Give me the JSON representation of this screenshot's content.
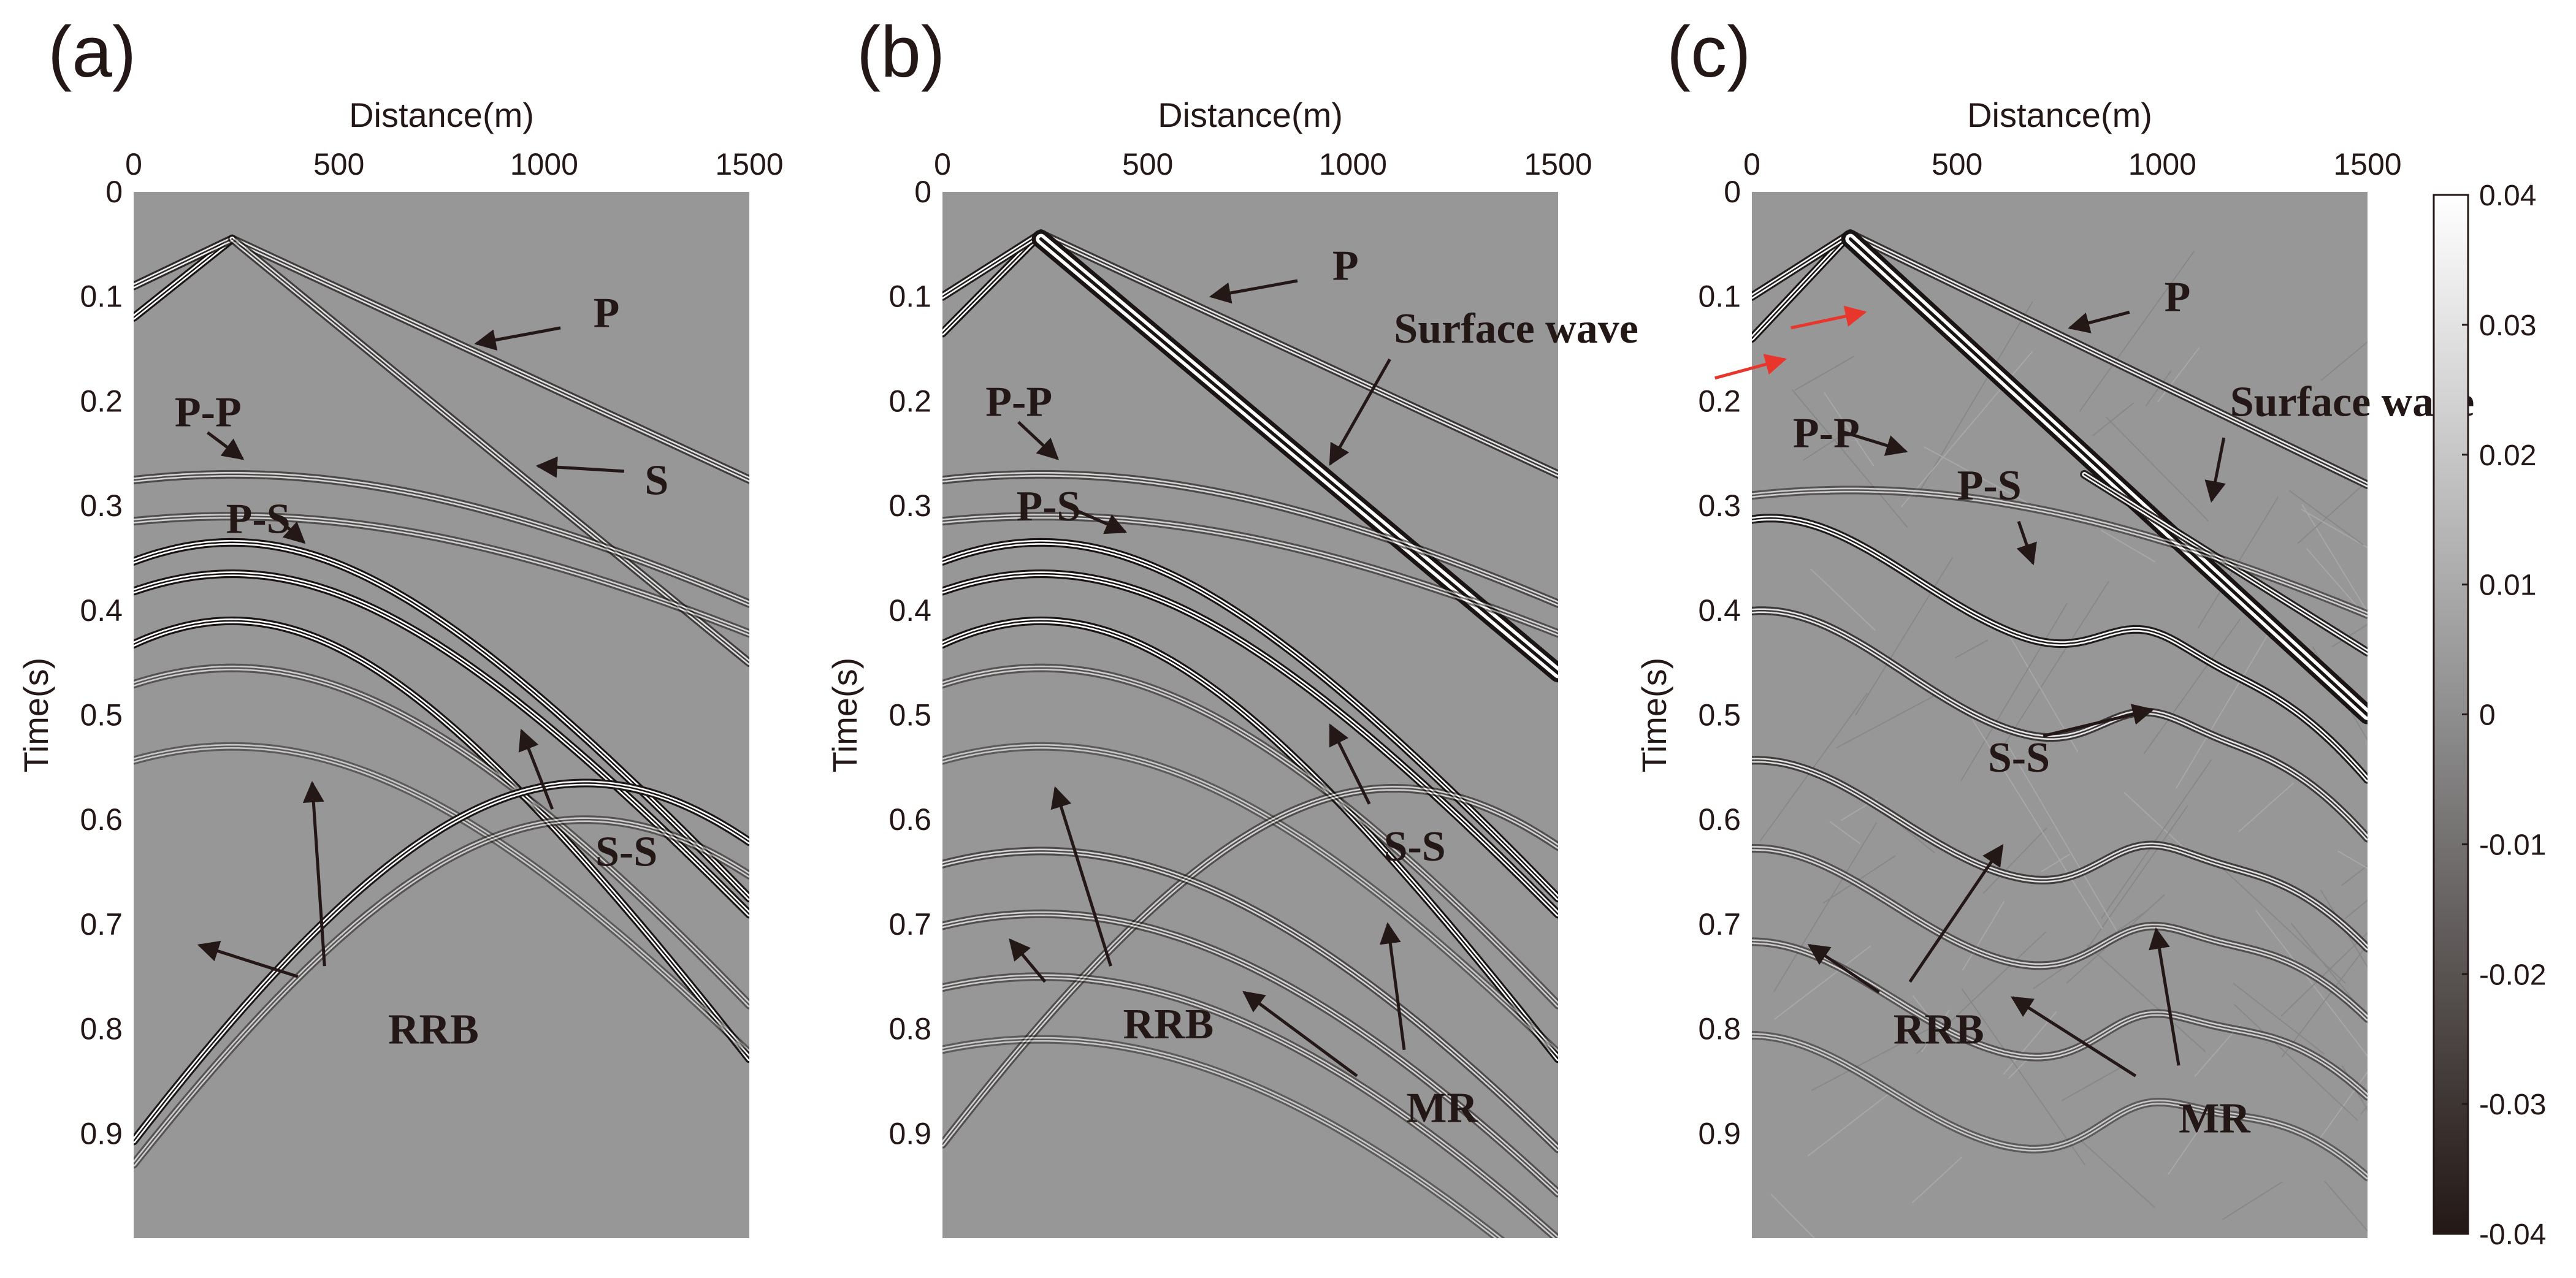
{
  "figure": {
    "type": "seismic-shot-gather-panels",
    "background": "#ffffff",
    "panel_fill": "#979797",
    "ink": "#231815",
    "arrow_color": "#231815",
    "red_arrow_color": "#e8362c"
  },
  "chart_data": [
    {
      "type": "heatmap",
      "panel_label": "(a)",
      "xlabel": "Distance(m)",
      "ylabel": "Time(s)",
      "xlim": [
        0,
        1500
      ],
      "ylim": [
        0,
        1.0
      ],
      "xticks": [
        0,
        500,
        1000,
        1500
      ],
      "xtick_labels": [
        "0",
        "500",
        "1000",
        "1500"
      ],
      "yticks": [
        0,
        0.1,
        0.2,
        0.3,
        0.4,
        0.5,
        0.6,
        0.7,
        0.8,
        0.9
      ],
      "ytick_labels": [
        "0",
        "0.1",
        "0.2",
        "0.3",
        "0.4",
        "0.5",
        "0.6",
        "0.7",
        "0.8",
        "0.9"
      ],
      "source_x": 240,
      "source_t": 0.045,
      "events": [
        {
          "name": "P",
          "kind": "line",
          "points": [
            [
              240,
              0.045
            ],
            [
              1500,
              0.275
            ]
          ],
          "strength": 0.5
        },
        {
          "name": "P-left",
          "kind": "line",
          "points": [
            [
              240,
              0.045
            ],
            [
              0,
              0.12
            ]
          ],
          "strength": 1.0
        },
        {
          "name": "P-left-2",
          "kind": "line",
          "points": [
            [
              240,
              0.045
            ],
            [
              0,
              0.09
            ]
          ],
          "strength": 0.7
        },
        {
          "name": "S",
          "kind": "line",
          "points": [
            [
              240,
              0.045
            ],
            [
              1500,
              0.45
            ]
          ],
          "strength": 0.5
        },
        {
          "name": "P-P",
          "kind": "hyperbola",
          "t0": 0.27,
          "v": 4400,
          "strength": 0.4
        },
        {
          "name": "P-P-2",
          "kind": "hyperbola",
          "t0": 0.31,
          "v": 4400,
          "strength": 0.35
        },
        {
          "name": "P-S",
          "kind": "hyperbola",
          "t0": 0.335,
          "v": 2150,
          "strength": 1.0
        },
        {
          "name": "P-S-2",
          "kind": "hyperbola",
          "t0": 0.365,
          "v": 2150,
          "strength": 0.95
        },
        {
          "name": "S-S",
          "kind": "hyperbola",
          "t0": 0.41,
          "v": 1750,
          "strength": 1.0
        },
        {
          "name": "weak-1",
          "kind": "hyperbola",
          "t0": 0.455,
          "v": 2000,
          "strength": 0.3
        },
        {
          "name": "weak-2",
          "kind": "hyperbola",
          "t0": 0.53,
          "v": 2000,
          "strength": 0.25
        },
        {
          "name": "RRB",
          "kind": "hyperbola",
          "t0": 0.565,
          "v": 1550,
          "x0": 1100,
          "strength": 0.85
        },
        {
          "name": "RRB-2",
          "kind": "hyperbola",
          "t0": 0.6,
          "v": 1550,
          "x0": 1100,
          "strength": 0.3
        }
      ],
      "annotations": [
        {
          "text": "P",
          "x": 1120,
          "t": 0.115,
          "ax": 1040,
          "at": 0.13,
          "hx": 835,
          "ht": 0.145
        },
        {
          "text": "S",
          "x": 1245,
          "t": 0.275,
          "ax": 1195,
          "at": 0.267,
          "hx": 985,
          "ht": 0.262
        },
        {
          "text": "P-P",
          "x": 100,
          "t": 0.21,
          "ax": 180,
          "at": 0.23,
          "hx": 265,
          "ht": 0.255
        },
        {
          "text": "P-S",
          "x": 225,
          "t": 0.312,
          "ax": 345,
          "at": 0.31,
          "hx": 415,
          "ht": 0.335
        },
        {
          "text": "S-S",
          "x": 1125,
          "t": 0.63,
          "ax": 1020,
          "at": 0.59,
          "hx": 945,
          "ht": 0.515
        },
        {
          "text": "RRB",
          "x": 620,
          "t": 0.8,
          "ax": 400,
          "at": 0.75,
          "hx": 160,
          "ht": 0.72
        },
        {
          "text": "",
          "x": 0,
          "t": 0,
          "ax": 465,
          "at": 0.74,
          "hx": 435,
          "ht": 0.565
        }
      ]
    },
    {
      "type": "heatmap",
      "panel_label": "(b)",
      "xlabel": "Distance(m)",
      "ylabel": "Time(s)",
      "xlim": [
        0,
        1500
      ],
      "ylim": [
        0,
        1.0
      ],
      "xticks": [
        0,
        500,
        1000,
        1500
      ],
      "xtick_labels": [
        "0",
        "500",
        "1000",
        "1500"
      ],
      "yticks": [
        0,
        0.1,
        0.2,
        0.3,
        0.4,
        0.5,
        0.6,
        0.7,
        0.8,
        0.9
      ],
      "ytick_labels": [
        "0",
        "0.1",
        "0.2",
        "0.3",
        "0.4",
        "0.5",
        "0.6",
        "0.7",
        "0.8",
        "0.9"
      ],
      "source_x": 240,
      "source_t": 0.04,
      "events": [
        {
          "name": "P",
          "kind": "line",
          "points": [
            [
              240,
              0.04
            ],
            [
              1500,
              0.27
            ]
          ],
          "strength": 0.55
        },
        {
          "name": "P-left",
          "kind": "line",
          "points": [
            [
              240,
              0.04
            ],
            [
              0,
              0.135
            ]
          ],
          "strength": 1.0
        },
        {
          "name": "P-left-2",
          "kind": "line",
          "points": [
            [
              240,
              0.04
            ],
            [
              0,
              0.1
            ]
          ],
          "strength": 0.8
        },
        {
          "name": "Surface wave",
          "kind": "line",
          "points": [
            [
              240,
              0.045
            ],
            [
              1500,
              0.46
            ]
          ],
          "strength": 1.0,
          "wide": true
        },
        {
          "name": "P-P",
          "kind": "hyperbola",
          "t0": 0.27,
          "v": 4400,
          "strength": 0.4
        },
        {
          "name": "P-P-2",
          "kind": "hyperbola",
          "t0": 0.31,
          "v": 4400,
          "strength": 0.35
        },
        {
          "name": "P-S",
          "kind": "hyperbola",
          "t0": 0.335,
          "v": 2150,
          "strength": 1.0
        },
        {
          "name": "P-S-2",
          "kind": "hyperbola",
          "t0": 0.365,
          "v": 2150,
          "strength": 0.9
        },
        {
          "name": "S-S",
          "kind": "hyperbola",
          "t0": 0.41,
          "v": 1750,
          "strength": 1.0
        },
        {
          "name": "weak-1",
          "kind": "hyperbola",
          "t0": 0.455,
          "v": 2000,
          "strength": 0.3
        },
        {
          "name": "weak-2",
          "kind": "hyperbola",
          "t0": 0.53,
          "v": 2000,
          "strength": 0.25
        },
        {
          "name": "RRB",
          "kind": "hyperbola",
          "t0": 0.57,
          "v": 1550,
          "x0": 1100,
          "strength": 0.35
        },
        {
          "name": "MR",
          "kind": "hyperbola",
          "t0": 0.63,
          "v": 1900,
          "strength": 0.4
        },
        {
          "name": "MR-2",
          "kind": "hyperbola",
          "t0": 0.69,
          "v": 1900,
          "strength": 0.35
        },
        {
          "name": "MR-3",
          "kind": "hyperbola",
          "t0": 0.75,
          "v": 1900,
          "strength": 0.3
        },
        {
          "name": "MR-4",
          "kind": "hyperbola",
          "t0": 0.81,
          "v": 1900,
          "strength": 0.25
        }
      ],
      "annotations": [
        {
          "text": "P",
          "x": 950,
          "t": 0.07,
          "ax": 865,
          "at": 0.085,
          "hx": 655,
          "ht": 0.1
        },
        {
          "text": "Surface wave",
          "x": 1100,
          "t": 0.13,
          "ax": 1090,
          "at": 0.16,
          "hx": 945,
          "ht": 0.26
        },
        {
          "text": "P-P",
          "x": 105,
          "t": 0.2,
          "ax": 185,
          "at": 0.22,
          "hx": 280,
          "ht": 0.255
        },
        {
          "text": "P-S",
          "x": 180,
          "t": 0.3,
          "ax": 300,
          "at": 0.3,
          "hx": 445,
          "ht": 0.325
        },
        {
          "text": "S-S",
          "x": 1075,
          "t": 0.625,
          "ax": 1040,
          "at": 0.585,
          "hx": 945,
          "ht": 0.51
        },
        {
          "text": "RRB",
          "x": 440,
          "t": 0.795,
          "ax": 410,
          "at": 0.74,
          "hx": 275,
          "ht": 0.57
        },
        {
          "text": "",
          "x": 0,
          "t": 0,
          "ax": 250,
          "at": 0.755,
          "hx": 165,
          "ht": 0.715
        },
        {
          "text": "MR",
          "x": 1130,
          "t": 0.875,
          "ax": 1125,
          "at": 0.82,
          "hx": 1085,
          "ht": 0.7
        },
        {
          "text": "",
          "x": 0,
          "t": 0,
          "ax": 1010,
          "at": 0.845,
          "hx": 735,
          "ht": 0.765
        }
      ]
    },
    {
      "type": "heatmap",
      "panel_label": "(c)",
      "xlabel": "Distance(m)",
      "ylabel": "Time(s)",
      "xlim": [
        0,
        1500
      ],
      "ylim": [
        0,
        1.0
      ],
      "xticks": [
        0,
        500,
        1000,
        1500
      ],
      "xtick_labels": [
        "0",
        "500",
        "1000",
        "1500"
      ],
      "yticks": [
        0,
        0.1,
        0.2,
        0.3,
        0.4,
        0.5,
        0.6,
        0.7,
        0.8,
        0.9
      ],
      "ytick_labels": [
        "0",
        "0.1",
        "0.2",
        "0.3",
        "0.4",
        "0.5",
        "0.6",
        "0.7",
        "0.8",
        "0.9"
      ],
      "source_x": 240,
      "source_t": 0.04,
      "noisy": true,
      "events": [
        {
          "name": "P",
          "kind": "line",
          "points": [
            [
              240,
              0.04
            ],
            [
              1500,
              0.28
            ]
          ],
          "strength": 0.6
        },
        {
          "name": "P-left",
          "kind": "line",
          "points": [
            [
              240,
              0.04
            ],
            [
              0,
              0.14
            ]
          ],
          "strength": 1.0
        },
        {
          "name": "P-left-2",
          "kind": "line",
          "points": [
            [
              240,
              0.04
            ],
            [
              0,
              0.1
            ]
          ],
          "strength": 0.8
        },
        {
          "name": "Surface wave",
          "kind": "line",
          "points": [
            [
              240,
              0.045
            ],
            [
              1500,
              0.5
            ]
          ],
          "strength": 1.0,
          "wide": true
        },
        {
          "name": "Surface wave-2",
          "kind": "line",
          "points": [
            [
              810,
              0.27
            ],
            [
              1500,
              0.44
            ]
          ],
          "strength": 0.75
        },
        {
          "name": "P-P",
          "kind": "hyperbola",
          "t0": 0.285,
          "v": 4400,
          "strength": 0.3
        },
        {
          "name": "P-S",
          "kind": "wavy",
          "t0": 0.345,
          "amp": 0.045,
          "strength": 0.8
        },
        {
          "name": "S-S",
          "kind": "wavy",
          "t0": 0.44,
          "amp": 0.05,
          "strength": 0.55
        },
        {
          "name": "RRB",
          "kind": "wavy",
          "t0": 0.585,
          "amp": 0.05,
          "strength": 0.5
        },
        {
          "name": "MR",
          "kind": "wavy",
          "t0": 0.67,
          "amp": 0.05,
          "strength": 0.35
        },
        {
          "name": "MR-2",
          "kind": "wavy",
          "t0": 0.76,
          "amp": 0.05,
          "strength": 0.3
        },
        {
          "name": "MR-3",
          "kind": "wavy",
          "t0": 0.85,
          "amp": 0.05,
          "strength": 0.25
        }
      ],
      "annotations": [
        {
          "text": "P",
          "x": 1005,
          "t": 0.1,
          "ax": 920,
          "at": 0.115,
          "hx": 775,
          "ht": 0.13
        },
        {
          "text": "Surface wave",
          "x": 1165,
          "t": 0.2,
          "ax": 1150,
          "at": 0.235,
          "hx": 1120,
          "ht": 0.295
        },
        {
          "text": "P-P",
          "x": 100,
          "t": 0.23,
          "ax": 210,
          "at": 0.228,
          "hx": 375,
          "ht": 0.248
        },
        {
          "text": "P-S",
          "x": 500,
          "t": 0.28,
          "ax": 650,
          "at": 0.315,
          "hx": 685,
          "ht": 0.355
        },
        {
          "text": "S-S",
          "x": 575,
          "t": 0.54,
          "ax": 710,
          "at": 0.52,
          "hx": 975,
          "ht": 0.495
        },
        {
          "text": "RRB",
          "x": 345,
          "t": 0.8,
          "ax": 310,
          "at": 0.765,
          "hx": 140,
          "ht": 0.72
        },
        {
          "text": "",
          "x": 0,
          "t": 0,
          "ax": 385,
          "at": 0.755,
          "hx": 610,
          "ht": 0.625
        },
        {
          "text": "MR",
          "x": 1040,
          "t": 0.885,
          "ax": 1040,
          "at": 0.835,
          "hx": 985,
          "ht": 0.705
        },
        {
          "text": "",
          "x": 0,
          "t": 0,
          "ax": 935,
          "at": 0.845,
          "hx": 635,
          "ht": 0.77
        }
      ],
      "red_arrows": [
        {
          "ax": -90,
          "at": 0.178,
          "hx": 80,
          "ht": 0.16
        },
        {
          "ax": 95,
          "at": 0.13,
          "hx": 275,
          "ht": 0.115
        }
      ]
    }
  ],
  "colorbar": {
    "vmin": -0.04,
    "vmax": 0.04,
    "ticks": [
      0.04,
      0.03,
      0.02,
      0.01,
      0,
      -0.01,
      -0.02,
      -0.03,
      -0.04
    ],
    "tick_labels": [
      "0.04",
      "0.03",
      "0.02",
      "0.01",
      "0",
      "-0.01",
      "-0.02",
      "-0.03",
      "-0.04"
    ]
  }
}
